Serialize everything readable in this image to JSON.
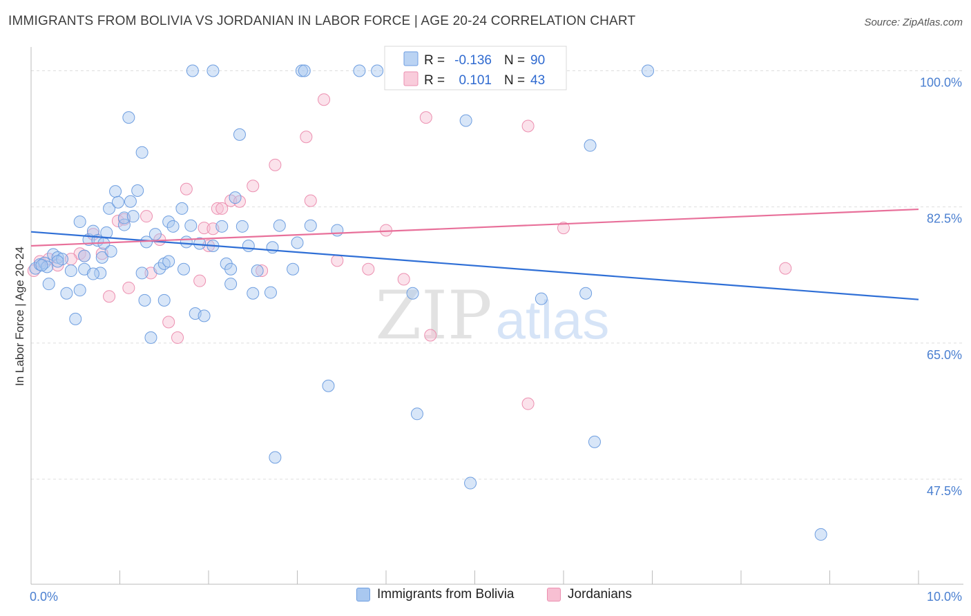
{
  "title": "IMMIGRANTS FROM BOLIVIA VS JORDANIAN IN LABOR FORCE | AGE 20-24 CORRELATION CHART",
  "source": "Source: ZipAtlas.com",
  "watermark": {
    "zip": "ZIP",
    "atlas": "atlas"
  },
  "legend": {
    "rows": [
      {
        "r_label": "R =",
        "r_value": "-0.136",
        "n_label": "N =",
        "n_value": "90",
        "color": "#a9c8f0",
        "stroke": "#6e9ee0"
      },
      {
        "r_label": "R =",
        "r_value": "0.101",
        "n_label": "N =",
        "n_value": "43",
        "color": "#f7bfd2",
        "stroke": "#ec8fb0"
      }
    ]
  },
  "bottom_legend": [
    {
      "label": "Immigrants from Bolivia",
      "color": "#a9c8f0",
      "stroke": "#6e9ee0"
    },
    {
      "label": "Jordanians",
      "color": "#f7bfd2",
      "stroke": "#ec8fb0"
    }
  ],
  "chart_data": {
    "type": "scatter",
    "title": "IMMIGRANTS FROM BOLIVIA VS JORDANIAN IN LABOR FORCE | AGE 20-24 CORRELATION CHART",
    "xlabel": "",
    "ylabel": "In Labor Force | Age 20-24",
    "xlim": [
      0,
      10
    ],
    "ylim": [
      34,
      102
    ],
    "x_tick_labels": [
      {
        "value": 0,
        "label": "0.0%"
      },
      {
        "value": 10,
        "label": "10.0%"
      }
    ],
    "y_tick_labels": [
      {
        "value": 100,
        "label": "100.0%"
      },
      {
        "value": 82.5,
        "label": "82.5%"
      },
      {
        "value": 65,
        "label": "65.0%"
      },
      {
        "value": 47.5,
        "label": "47.5%"
      }
    ],
    "x_minor_ticks": [
      1,
      2,
      3,
      4,
      5,
      6,
      7,
      8,
      9,
      10
    ],
    "grid": true,
    "series": [
      {
        "name": "Immigrants from Bolivia",
        "color": "#a9c8f0",
        "stroke": "#6e9ee0",
        "trend": {
          "x": [
            0,
            10
          ],
          "y": [
            79.3,
            70.6
          ],
          "color": "#2f6fd6"
        },
        "points": [
          [
            0.05,
            74.6
          ],
          [
            0.1,
            75.1
          ],
          [
            0.15,
            75.3
          ],
          [
            0.18,
            74.8
          ],
          [
            0.2,
            72.6
          ],
          [
            0.25,
            76.4
          ],
          [
            0.3,
            76.0
          ],
          [
            0.35,
            75.8
          ],
          [
            0.4,
            71.4
          ],
          [
            0.45,
            74.3
          ],
          [
            0.5,
            68.1
          ],
          [
            0.55,
            71.8
          ],
          [
            0.55,
            80.6
          ],
          [
            0.6,
            76.2
          ],
          [
            0.6,
            74.5
          ],
          [
            0.65,
            78.3
          ],
          [
            0.7,
            79.4
          ],
          [
            0.75,
            78.2
          ],
          [
            0.78,
            74.0
          ],
          [
            0.8,
            76.0
          ],
          [
            0.82,
            77.8
          ],
          [
            0.85,
            79.2
          ],
          [
            0.9,
            76.8
          ],
          [
            0.88,
            82.3
          ],
          [
            0.95,
            84.5
          ],
          [
            0.98,
            83.1
          ],
          [
            1.05,
            80.2
          ],
          [
            1.05,
            81.1
          ],
          [
            1.1,
            94.0
          ],
          [
            1.12,
            83.2
          ],
          [
            1.15,
            81.3
          ],
          [
            1.2,
            84.6
          ],
          [
            1.25,
            89.5
          ],
          [
            1.25,
            74.0
          ],
          [
            1.28,
            70.5
          ],
          [
            1.3,
            78.0
          ],
          [
            1.35,
            65.7
          ],
          [
            1.4,
            79.0
          ],
          [
            1.45,
            74.6
          ],
          [
            1.5,
            75.2
          ],
          [
            1.5,
            70.5
          ],
          [
            1.55,
            75.5
          ],
          [
            1.55,
            80.6
          ],
          [
            1.6,
            80.0
          ],
          [
            1.7,
            82.3
          ],
          [
            1.72,
            74.5
          ],
          [
            1.75,
            78.0
          ],
          [
            1.8,
            80.1
          ],
          [
            1.82,
            100.0
          ],
          [
            1.85,
            68.8
          ],
          [
            1.9,
            77.8
          ],
          [
            1.95,
            68.5
          ],
          [
            2.05,
            100.0
          ],
          [
            2.05,
            77.5
          ],
          [
            2.15,
            80.0
          ],
          [
            2.2,
            75.2
          ],
          [
            2.25,
            74.5
          ],
          [
            2.25,
            72.6
          ],
          [
            2.3,
            83.7
          ],
          [
            2.35,
            91.8
          ],
          [
            2.38,
            80.0
          ],
          [
            2.45,
            77.5
          ],
          [
            2.5,
            71.4
          ],
          [
            2.55,
            74.3
          ],
          [
            2.7,
            71.5
          ],
          [
            2.72,
            77.3
          ],
          [
            2.75,
            50.3
          ],
          [
            2.8,
            80.1
          ],
          [
            2.95,
            74.5
          ],
          [
            3.0,
            77.9
          ],
          [
            3.05,
            100.0
          ],
          [
            3.08,
            100.0
          ],
          [
            3.15,
            80.1
          ],
          [
            3.35,
            59.5
          ],
          [
            3.45,
            79.5
          ],
          [
            3.7,
            100.0
          ],
          [
            3.9,
            100.0
          ],
          [
            4.3,
            71.4
          ],
          [
            4.35,
            55.9
          ],
          [
            4.95,
            47.0
          ],
          [
            4.9,
            93.6
          ],
          [
            5.75,
            70.7
          ],
          [
            6.3,
            90.4
          ],
          [
            6.25,
            71.4
          ],
          [
            6.35,
            52.3
          ],
          [
            6.95,
            100.0
          ],
          [
            8.9,
            40.4
          ],
          [
            0.12,
            75.0
          ],
          [
            0.3,
            75.5
          ],
          [
            0.7,
            73.9
          ]
        ]
      },
      {
        "name": "Jordanians",
        "color": "#f7bfd2",
        "stroke": "#ec8fb0",
        "trend": {
          "x": [
            0,
            10
          ],
          "y": [
            77.5,
            82.2
          ],
          "color": "#e8709a"
        },
        "points": [
          [
            0.03,
            74.3
          ],
          [
            0.1,
            75.5
          ],
          [
            0.2,
            75.8
          ],
          [
            0.3,
            75.0
          ],
          [
            0.55,
            76.5
          ],
          [
            0.6,
            76.2
          ],
          [
            0.7,
            79.0
          ],
          [
            0.8,
            76.5
          ],
          [
            0.88,
            71.0
          ],
          [
            0.98,
            80.7
          ],
          [
            1.05,
            80.9
          ],
          [
            1.1,
            72.1
          ],
          [
            1.3,
            81.3
          ],
          [
            1.35,
            74.0
          ],
          [
            1.45,
            78.3
          ],
          [
            1.55,
            67.7
          ],
          [
            1.65,
            65.7
          ],
          [
            1.75,
            84.8
          ],
          [
            1.9,
            73.0
          ],
          [
            1.95,
            79.8
          ],
          [
            2.0,
            77.5
          ],
          [
            2.05,
            79.7
          ],
          [
            2.1,
            82.3
          ],
          [
            2.15,
            82.3
          ],
          [
            2.25,
            83.3
          ],
          [
            2.35,
            83.2
          ],
          [
            2.5,
            85.2
          ],
          [
            2.6,
            74.3
          ],
          [
            2.75,
            87.9
          ],
          [
            3.1,
            91.5
          ],
          [
            3.15,
            83.3
          ],
          [
            3.3,
            96.3
          ],
          [
            3.45,
            75.6
          ],
          [
            3.8,
            74.5
          ],
          [
            4.0,
            79.5
          ],
          [
            4.2,
            73.2
          ],
          [
            4.45,
            94.0
          ],
          [
            4.5,
            66.0
          ],
          [
            5.6,
            57.2
          ],
          [
            5.6,
            92.9
          ],
          [
            6.0,
            79.8
          ],
          [
            8.5,
            74.6
          ],
          [
            0.45,
            75.8
          ]
        ]
      }
    ]
  }
}
